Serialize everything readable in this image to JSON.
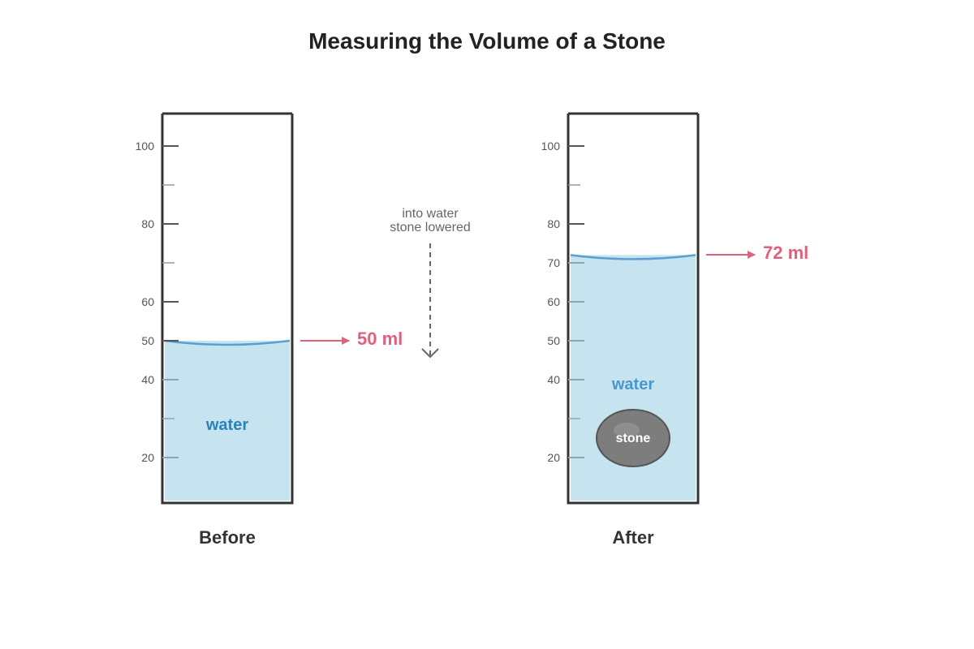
{
  "title": "Measuring the Volume of a Stone",
  "note_lines": [
    "into water",
    "stone lowered"
  ],
  "colors": {
    "water_fill": "#c5e4f0",
    "water_surface": "#5a9fcf",
    "water_text_before": "#2f82b8",
    "water_text_after": "#4b97cb",
    "reading": "#e0607e",
    "outline": "#333333",
    "stone": "#7d7d7d",
    "stone_highlight": "#8e8e8e",
    "stone_outline": "#555555"
  },
  "before": {
    "caption": "Before",
    "water_label": "water",
    "reading_label": "50 ml",
    "level_ml": 50,
    "tick_labels": [
      "100",
      "80",
      "60",
      "50",
      "40",
      "20"
    ]
  },
  "after": {
    "caption": "After",
    "water_label": "water",
    "stone_label": "stone",
    "reading_label": "72 ml",
    "level_ml": 72,
    "tick_labels": [
      "100",
      "80",
      "70",
      "60",
      "50",
      "40",
      "20"
    ]
  }
}
